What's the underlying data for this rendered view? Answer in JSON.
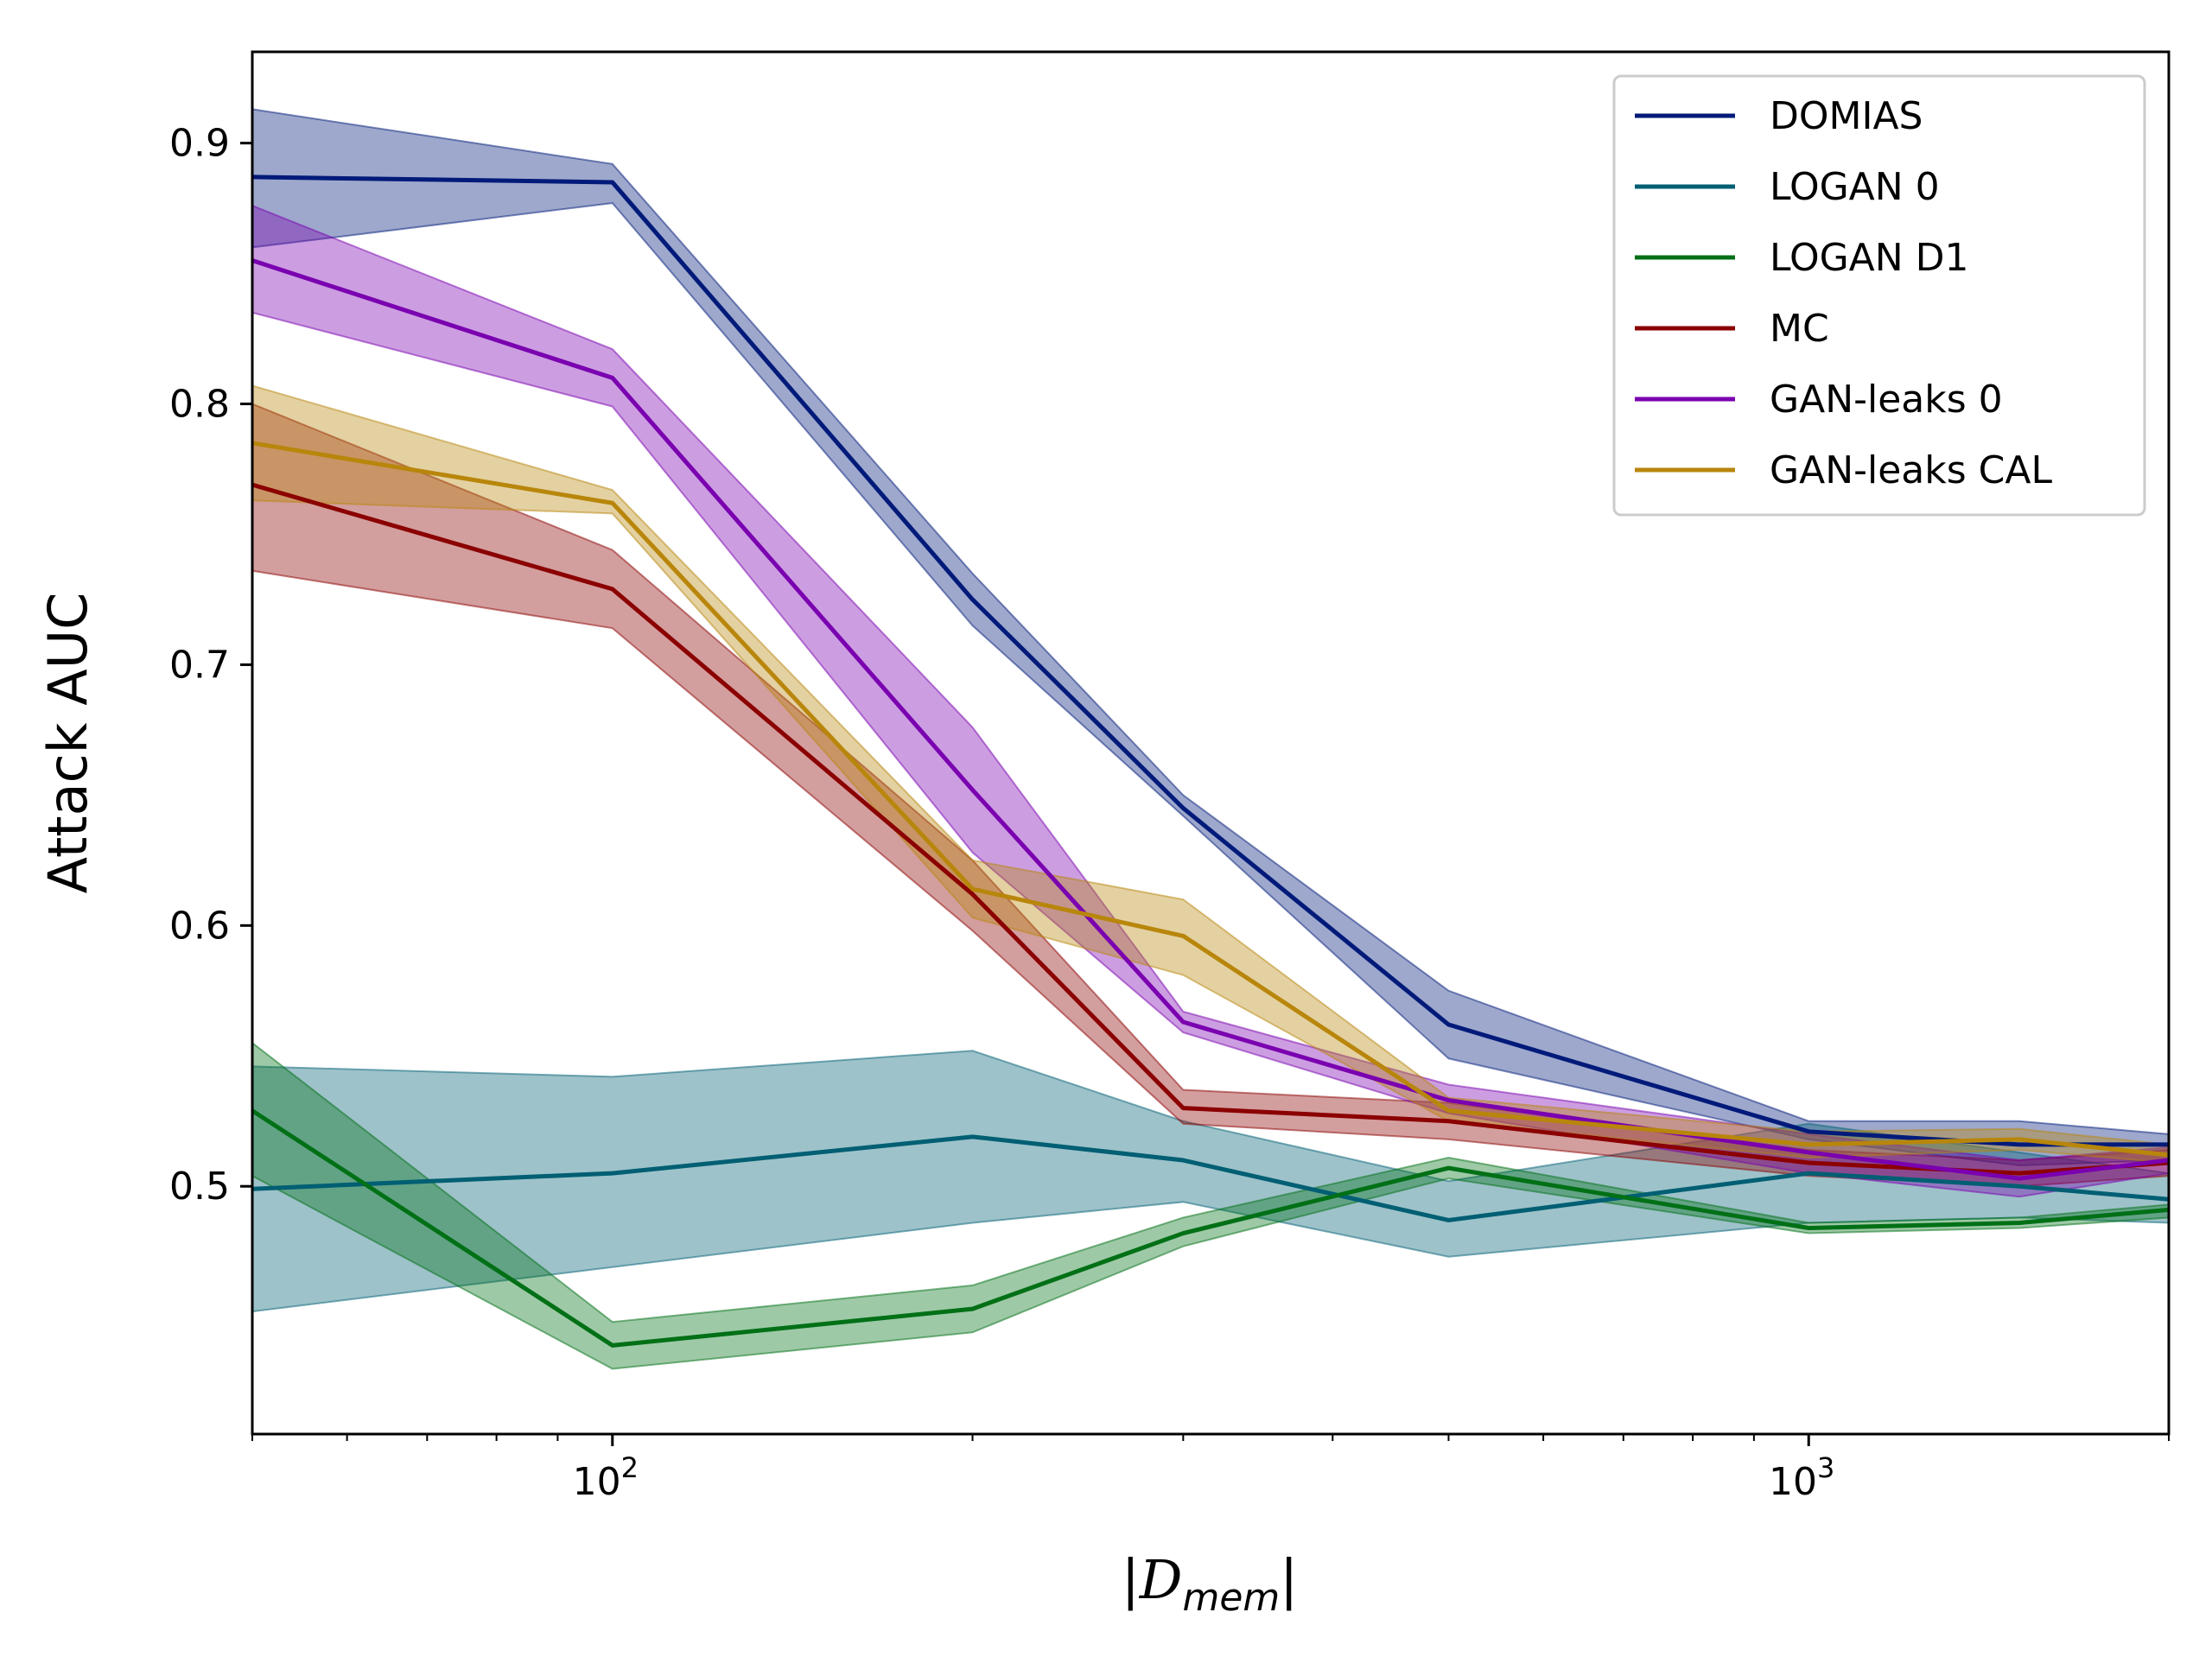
{
  "chart_data": {
    "type": "line",
    "xlabel": "|D_mem|",
    "ylabel": "Attack AUC",
    "xscale": "log",
    "xlim": [
      50,
      2000
    ],
    "ylim": [
      0.405,
      0.935
    ],
    "x": [
      50,
      100,
      200,
      300,
      500,
      1000,
      1500,
      2000
    ],
    "x_ticks": [
      {
        "value": 100,
        "base": "10",
        "exp": "2"
      },
      {
        "value": 1000,
        "base": "10",
        "exp": "3"
      }
    ],
    "y_ticks": [
      {
        "value": 0.5,
        "label": "0.5"
      },
      {
        "value": 0.6,
        "label": "0.6"
      },
      {
        "value": 0.7,
        "label": "0.7"
      },
      {
        "value": 0.8,
        "label": "0.8"
      },
      {
        "value": 0.9,
        "label": "0.9"
      }
    ],
    "legend_position": "top-right",
    "grid": false,
    "series": [
      {
        "name": "DOMIAS",
        "color": "#001a7a",
        "values": [
          0.887,
          0.885,
          0.725,
          0.645,
          0.562,
          0.521,
          0.516,
          0.516
        ],
        "lower": [
          0.86,
          0.877,
          0.715,
          0.642,
          0.549,
          0.518,
          0.508,
          0.51
        ],
        "upper": [
          0.913,
          0.892,
          0.735,
          0.65,
          0.575,
          0.525,
          0.525,
          0.52
        ]
      },
      {
        "name": "LOGAN 0",
        "color": "#005f73",
        "values": [
          0.499,
          0.505,
          0.519,
          0.51,
          0.487,
          0.505,
          0.5,
          0.495
        ],
        "lower": [
          0.452,
          0.469,
          0.486,
          0.494,
          0.473,
          0.486,
          0.488,
          0.486
        ],
        "upper": [
          0.546,
          0.542,
          0.552,
          0.525,
          0.502,
          0.524,
          0.513,
          0.505
        ]
      },
      {
        "name": "LOGAN D1",
        "color": "#007016",
        "values": [
          0.529,
          0.439,
          0.453,
          0.482,
          0.507,
          0.484,
          0.486,
          0.491
        ],
        "lower": [
          0.504,
          0.43,
          0.444,
          0.477,
          0.503,
          0.482,
          0.484,
          0.488
        ],
        "upper": [
          0.555,
          0.448,
          0.462,
          0.488,
          0.511,
          0.486,
          0.488,
          0.493
        ]
      },
      {
        "name": "MC",
        "color": "#8b0000",
        "values": [
          0.769,
          0.729,
          0.612,
          0.53,
          0.525,
          0.509,
          0.505,
          0.509
        ],
        "lower": [
          0.736,
          0.714,
          0.598,
          0.524,
          0.518,
          0.504,
          0.5,
          0.504
        ],
        "upper": [
          0.8,
          0.744,
          0.625,
          0.537,
          0.532,
          0.514,
          0.51,
          0.514
        ]
      },
      {
        "name": "GAN-leaks 0",
        "color": "#7a00b0",
        "values": [
          0.855,
          0.81,
          0.652,
          0.563,
          0.533,
          0.513,
          0.503,
          0.51
        ],
        "lower": [
          0.835,
          0.799,
          0.628,
          0.559,
          0.528,
          0.505,
          0.496,
          0.505
        ],
        "upper": [
          0.876,
          0.821,
          0.676,
          0.567,
          0.539,
          0.52,
          0.51,
          0.515
        ]
      },
      {
        "name": "GAN-leaks CAL",
        "color": "#b8860b",
        "values": [
          0.785,
          0.762,
          0.614,
          0.596,
          0.529,
          0.516,
          0.518,
          0.512
        ],
        "lower": [
          0.763,
          0.758,
          0.603,
          0.581,
          0.525,
          0.511,
          0.514,
          0.509
        ],
        "upper": [
          0.807,
          0.767,
          0.625,
          0.61,
          0.534,
          0.521,
          0.522,
          0.516
        ]
      }
    ]
  }
}
